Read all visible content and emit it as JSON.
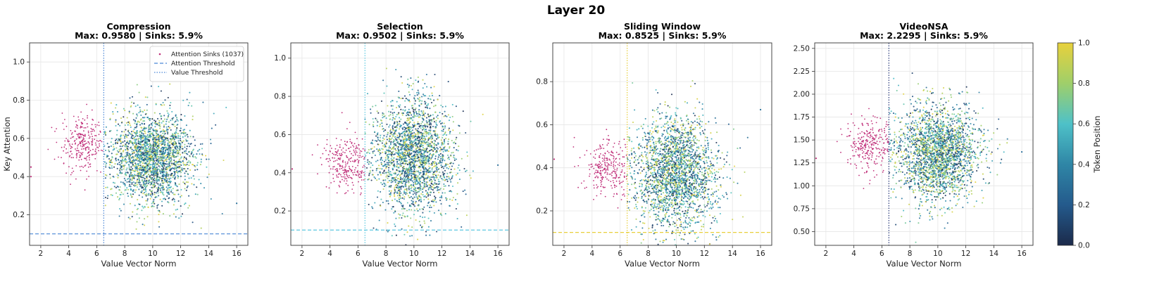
{
  "figure_title": "Layer 20",
  "colorbar": {
    "label": "Token Position",
    "ticks": [
      "0.0",
      "0.2",
      "0.4",
      "0.6",
      "0.8",
      "1.0"
    ],
    "range": [
      0,
      1
    ],
    "colormap": [
      "#1b2a4a",
      "#245a8c",
      "#2f86a6",
      "#4ec1c8",
      "#9fcf6a",
      "#e8d13c"
    ]
  },
  "sink_color": "#c0307a",
  "grid": true,
  "chart_data": [
    {
      "type": "scatter",
      "title": "Compression",
      "subtitle": "Max: 0.9580 | Sinks: 5.9%",
      "xlabel": "Value Vector Norm",
      "ylabel": "Key Attention",
      "xlim": [
        1.2,
        16.8
      ],
      "ylim": [
        0.04,
        1.1
      ],
      "xticks": [
        "2",
        "4",
        "6",
        "8",
        "10",
        "12",
        "14",
        "16"
      ],
      "yticks": [
        "0.2",
        "0.4",
        "0.6",
        "0.8",
        "1.0"
      ],
      "ytick_values": [
        0.2,
        0.4,
        0.6,
        0.8,
        1.0
      ],
      "value_threshold": 6.5,
      "attention_threshold": 0.1,
      "threshold_color": "#4a86d6",
      "cluster": {
        "x_center": 10,
        "x_sd": 1.45,
        "y_center": 0.5,
        "y_sd": 0.12
      },
      "sinks": {
        "x_center": 5.0,
        "x_sd": 0.75,
        "y_center": 0.57,
        "y_sd": 0.07
      },
      "outliers": [
        [
          16.0,
          0.26
        ],
        [
          1.3,
          0.4
        ],
        [
          1.3,
          0.45
        ]
      ],
      "legend": {
        "position": "top-right",
        "entries": [
          "Attention Sinks (1037)",
          "Attention Threshold",
          "Value Threshold"
        ]
      }
    },
    {
      "type": "scatter",
      "title": "Selection",
      "subtitle": "Max: 0.9502 | Sinks: 5.9%",
      "xlabel": "Value Vector Norm",
      "ylabel": "",
      "xlim": [
        1.2,
        16.8
      ],
      "ylim": [
        0.02,
        1.08
      ],
      "xticks": [
        "2",
        "4",
        "6",
        "8",
        "10",
        "12",
        "14",
        "16"
      ],
      "yticks": [
        "0.2",
        "0.4",
        "0.6",
        "0.8",
        "1.0"
      ],
      "ytick_values": [
        0.2,
        0.4,
        0.6,
        0.8,
        1.0
      ],
      "value_threshold": 6.5,
      "attention_threshold": 0.1,
      "threshold_color": "#5cc8e0",
      "cluster": {
        "x_center": 10,
        "x_sd": 1.45,
        "y_center": 0.49,
        "y_sd": 0.15
      },
      "sinks": {
        "x_center": 5.2,
        "x_sd": 0.8,
        "y_center": 0.45,
        "y_sd": 0.07
      },
      "outliers": [
        [
          16.0,
          0.44
        ],
        [
          1.3,
          0.42
        ]
      ],
      "legend": null
    },
    {
      "type": "scatter",
      "title": "Sliding Window",
      "subtitle": "Max: 0.8525 | Sinks: 5.9%",
      "xlabel": "Value Vector Norm",
      "ylabel": "",
      "xlim": [
        1.2,
        16.8
      ],
      "ylim": [
        0.04,
        0.98
      ],
      "xticks": [
        "2",
        "4",
        "6",
        "8",
        "10",
        "12",
        "14",
        "16"
      ],
      "yticks": [
        "0.2",
        "0.4",
        "0.6",
        "0.8"
      ],
      "ytick_values": [
        0.2,
        0.4,
        0.6,
        0.8
      ],
      "value_threshold": 6.5,
      "attention_threshold": 0.1,
      "threshold_color": "#e8cf3a",
      "cluster": {
        "x_center": 10,
        "x_sd": 1.45,
        "y_center": 0.38,
        "y_sd": 0.13
      },
      "sinks": {
        "x_center": 5.0,
        "x_sd": 0.8,
        "y_center": 0.4,
        "y_sd": 0.07
      },
      "outliers": [
        [
          16.0,
          0.67
        ],
        [
          1.3,
          0.44
        ]
      ],
      "legend": null
    },
    {
      "type": "scatter",
      "title": "VideoNSA",
      "subtitle": "Max: 2.2295 | Sinks: 5.9%",
      "xlabel": "Value Vector Norm",
      "ylabel": "",
      "xlim": [
        1.2,
        16.8
      ],
      "ylim": [
        0.35,
        2.56
      ],
      "xticks": [
        "2",
        "4",
        "6",
        "8",
        "10",
        "12",
        "14",
        "16"
      ],
      "yticks": [
        "0.50",
        "0.75",
        "1.00",
        "1.25",
        "1.50",
        "1.75",
        "2.00",
        "2.25",
        "2.50"
      ],
      "ytick_values": [
        0.5,
        0.75,
        1.0,
        1.25,
        1.5,
        1.75,
        2.0,
        2.25,
        2.5
      ],
      "value_threshold": 6.5,
      "attention_threshold": null,
      "threshold_color": "#2a3a7a",
      "cluster": {
        "x_center": 10,
        "x_sd": 1.45,
        "y_center": 1.35,
        "y_sd": 0.26
      },
      "sinks": {
        "x_center": 5.0,
        "x_sd": 0.8,
        "y_center": 1.45,
        "y_sd": 0.14
      },
      "outliers": [
        [
          16.0,
          1.37
        ],
        [
          1.3,
          1.3
        ]
      ],
      "legend": null
    }
  ]
}
